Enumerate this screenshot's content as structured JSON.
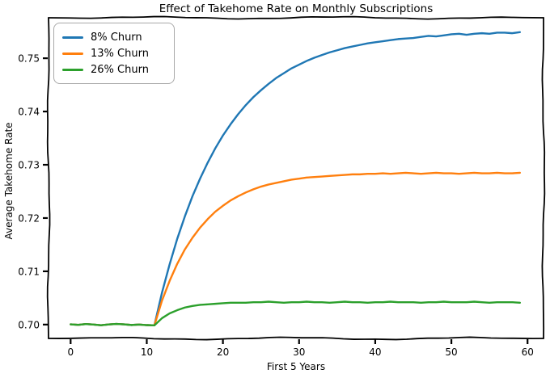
{
  "chart_data": {
    "type": "line",
    "style": "xkcd-handdrawn",
    "title": "Effect of Takehome Rate on Monthly Subscriptions",
    "xlabel": "First 5 Years",
    "ylabel": "Average Takehome Rate",
    "xlim": [
      -2.9,
      62.1
    ],
    "ylim": [
      0.6974,
      0.7576
    ],
    "grid": false,
    "legend_position": "upper left",
    "xticks": [
      0,
      10,
      20,
      30,
      40,
      50,
      60
    ],
    "xtick_labels": [
      "0",
      "10",
      "20",
      "30",
      "40",
      "50",
      "60"
    ],
    "yticks": [
      0.7,
      0.71,
      0.72,
      0.73,
      0.74,
      0.75
    ],
    "ytick_labels": [
      "0.70",
      "0.71",
      "0.72",
      "0.73",
      "0.74",
      "0.75"
    ],
    "x_start": 0,
    "x_step": 1,
    "series": [
      {
        "name": "8% Churn",
        "color": "#1f77b4",
        "values": [
          0.70005,
          0.69995,
          0.7001,
          0.7,
          0.69988,
          0.70002,
          0.70012,
          0.70004,
          0.69992,
          0.7,
          0.6999,
          0.69985,
          0.706,
          0.7113,
          0.7161,
          0.7203,
          0.7241,
          0.7274,
          0.7304,
          0.7331,
          0.7355,
          0.7376,
          0.7395,
          0.7412,
          0.7427,
          0.744,
          0.7452,
          0.7463,
          0.7472,
          0.7481,
          0.7488,
          0.7495,
          0.7501,
          0.7506,
          0.7511,
          0.7515,
          0.7519,
          0.7522,
          0.7525,
          0.7528,
          0.753,
          0.7532,
          0.7534,
          0.7536,
          0.7537,
          0.7538,
          0.754,
          0.7542,
          0.7541,
          0.7543,
          0.7545,
          0.7546,
          0.7544,
          0.7546,
          0.7547,
          0.7546,
          0.7548,
          0.7548,
          0.7547,
          0.7549
        ]
      },
      {
        "name": "13% Churn",
        "color": "#ff7f0e",
        "values": [
          0.70005,
          0.69995,
          0.7001,
          0.7,
          0.69988,
          0.70002,
          0.70012,
          0.70004,
          0.69992,
          0.7,
          0.6999,
          0.69985,
          0.7045,
          0.7082,
          0.7114,
          0.7141,
          0.7163,
          0.7182,
          0.7198,
          0.7212,
          0.7223,
          0.7233,
          0.7241,
          0.7248,
          0.7254,
          0.7259,
          0.7263,
          0.7266,
          0.7269,
          0.7272,
          0.7274,
          0.7276,
          0.7277,
          0.7278,
          0.7279,
          0.728,
          0.7281,
          0.7282,
          0.7282,
          0.7283,
          0.7283,
          0.7284,
          0.7283,
          0.7284,
          0.7285,
          0.7284,
          0.7283,
          0.7284,
          0.7285,
          0.7284,
          0.7284,
          0.7283,
          0.7284,
          0.7285,
          0.7284,
          0.7284,
          0.7285,
          0.7284,
          0.7284,
          0.7285
        ]
      },
      {
        "name": "26% Churn",
        "color": "#2ca02c",
        "values": [
          0.70005,
          0.69995,
          0.7001,
          0.7,
          0.69988,
          0.70002,
          0.70012,
          0.70004,
          0.69992,
          0.7,
          0.6999,
          0.69985,
          0.7012,
          0.7021,
          0.7027,
          0.7032,
          0.7035,
          0.7037,
          0.7038,
          0.7039,
          0.704,
          0.7041,
          0.7041,
          0.7041,
          0.7042,
          0.7042,
          0.7043,
          0.7042,
          0.7041,
          0.7042,
          0.7042,
          0.7043,
          0.7042,
          0.7042,
          0.7041,
          0.7042,
          0.7043,
          0.7042,
          0.7042,
          0.7041,
          0.7042,
          0.7042,
          0.7043,
          0.7042,
          0.7042,
          0.7042,
          0.7041,
          0.7042,
          0.7042,
          0.7043,
          0.7042,
          0.7042,
          0.7042,
          0.7043,
          0.7042,
          0.7041,
          0.7042,
          0.7042,
          0.7042,
          0.7041
        ]
      }
    ],
    "colors": {
      "spine": "#000000",
      "background": "#ffffff",
      "legend_border": "#a9a9a9"
    }
  }
}
